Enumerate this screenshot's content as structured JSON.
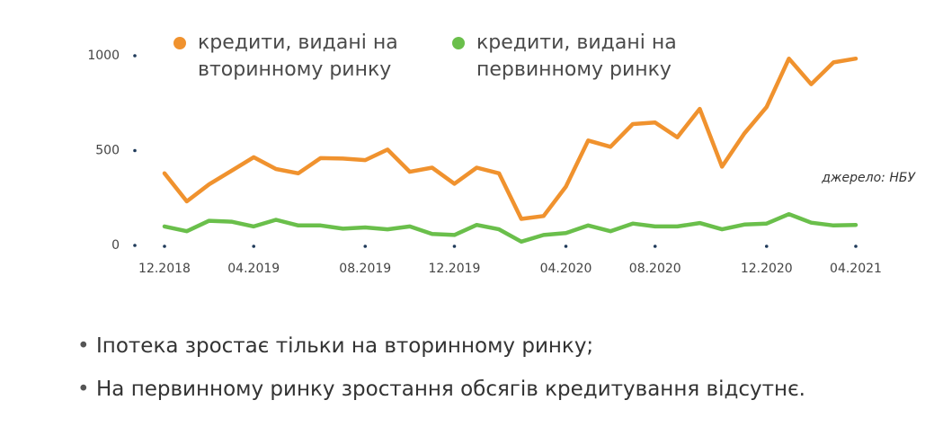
{
  "chart_data": {
    "type": "line",
    "categories": [
      "12.2018",
      null,
      null,
      null,
      "04.2019",
      null,
      null,
      null,
      null,
      "08.2019",
      null,
      null,
      null,
      "12.2019",
      null,
      null,
      null,
      null,
      "04.2020",
      null,
      null,
      null,
      "08.2020",
      null,
      null,
      null,
      null,
      "12.2020",
      null,
      null,
      null,
      "04.2021"
    ],
    "series": [
      {
        "name": "кредити, видані на вторинному ринку",
        "color": "#f0922e",
        "values": [
          380,
          232,
          322,
          393,
          465,
          403,
          380,
          460,
          458,
          450,
          505,
          388,
          410,
          325,
          410,
          380,
          140,
          155,
          310,
          553,
          520,
          640,
          648,
          570,
          720,
          415,
          590,
          730,
          985,
          850,
          965,
          985
        ]
      },
      {
        "name": "кредити, видані на первинному ринку",
        "color": "#6abf4b",
        "values": [
          100,
          75,
          130,
          125,
          100,
          135,
          105,
          105,
          88,
          95,
          85,
          100,
          60,
          55,
          108,
          85,
          20,
          55,
          65,
          105,
          75,
          115,
          100,
          100,
          118,
          85,
          110,
          115,
          165,
          120,
          105,
          108
        ]
      }
    ],
    "ylim": [
      0,
      1000
    ],
    "yticks": [
      0,
      500,
      1000
    ],
    "source": "джерело: НБУ"
  },
  "bullets": [
    "Іпотека зростає тільки на вторинному ринку;",
    "На первинному ринку зростання обсягів кредитування відсутнє."
  ]
}
